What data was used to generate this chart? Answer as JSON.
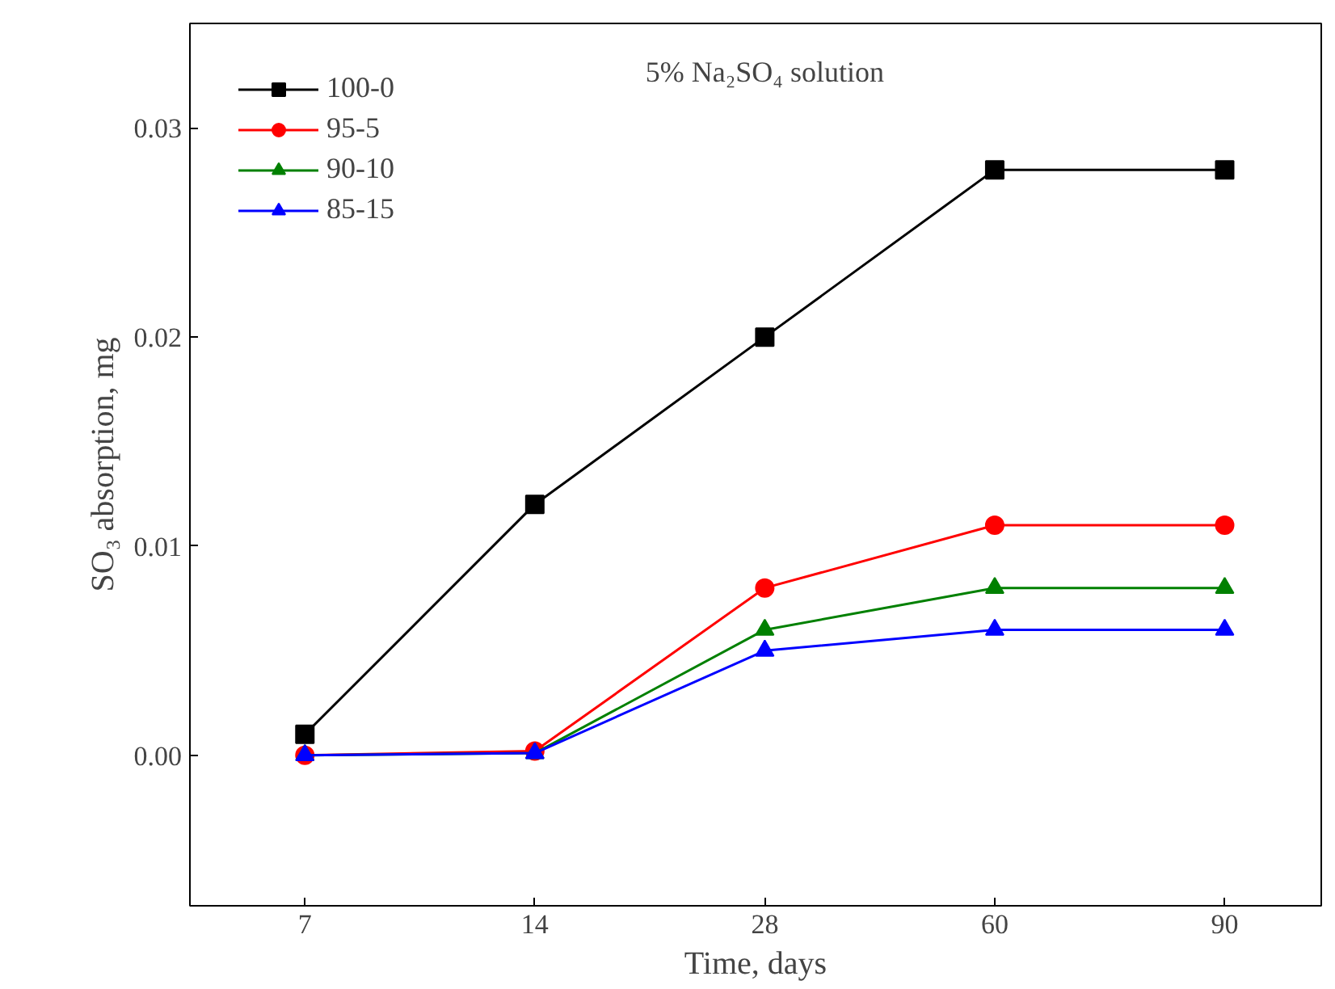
{
  "chart_data": {
    "type": "line",
    "title": "5% Na₂SO₄ solution",
    "xlabel": "Time, days",
    "ylabel": "SO₃ absorption, mg",
    "categories": [
      "7",
      "14",
      "28",
      "60",
      "90"
    ],
    "series": [
      {
        "name": "100-0",
        "color": "#000000",
        "marker": "square",
        "values": [
          0.001,
          0.012,
          0.02,
          0.028,
          0.028
        ]
      },
      {
        "name": "95-5",
        "color": "#ff0000",
        "marker": "circle",
        "values": [
          0.0,
          0.0002,
          0.008,
          0.011,
          0.011
        ]
      },
      {
        "name": "90-10",
        "color": "#008000",
        "marker": "triangle",
        "values": [
          0.0,
          0.0001,
          0.006,
          0.008,
          0.008
        ]
      },
      {
        "name": "85-15",
        "color": "#0000ff",
        "marker": "triangle",
        "values": [
          0.0,
          0.0001,
          0.005,
          0.006,
          0.006
        ]
      }
    ],
    "ylim": [
      -0.0072,
      0.035
    ],
    "yticks": [
      {
        "value": 0,
        "label": "0.00"
      },
      {
        "value": 0.01,
        "label": "0.01"
      },
      {
        "value": 0.02,
        "label": "0.02"
      },
      {
        "value": 0.03,
        "label": "0.03"
      }
    ],
    "legend": "top left",
    "grid": false,
    "line_style": "solid"
  }
}
